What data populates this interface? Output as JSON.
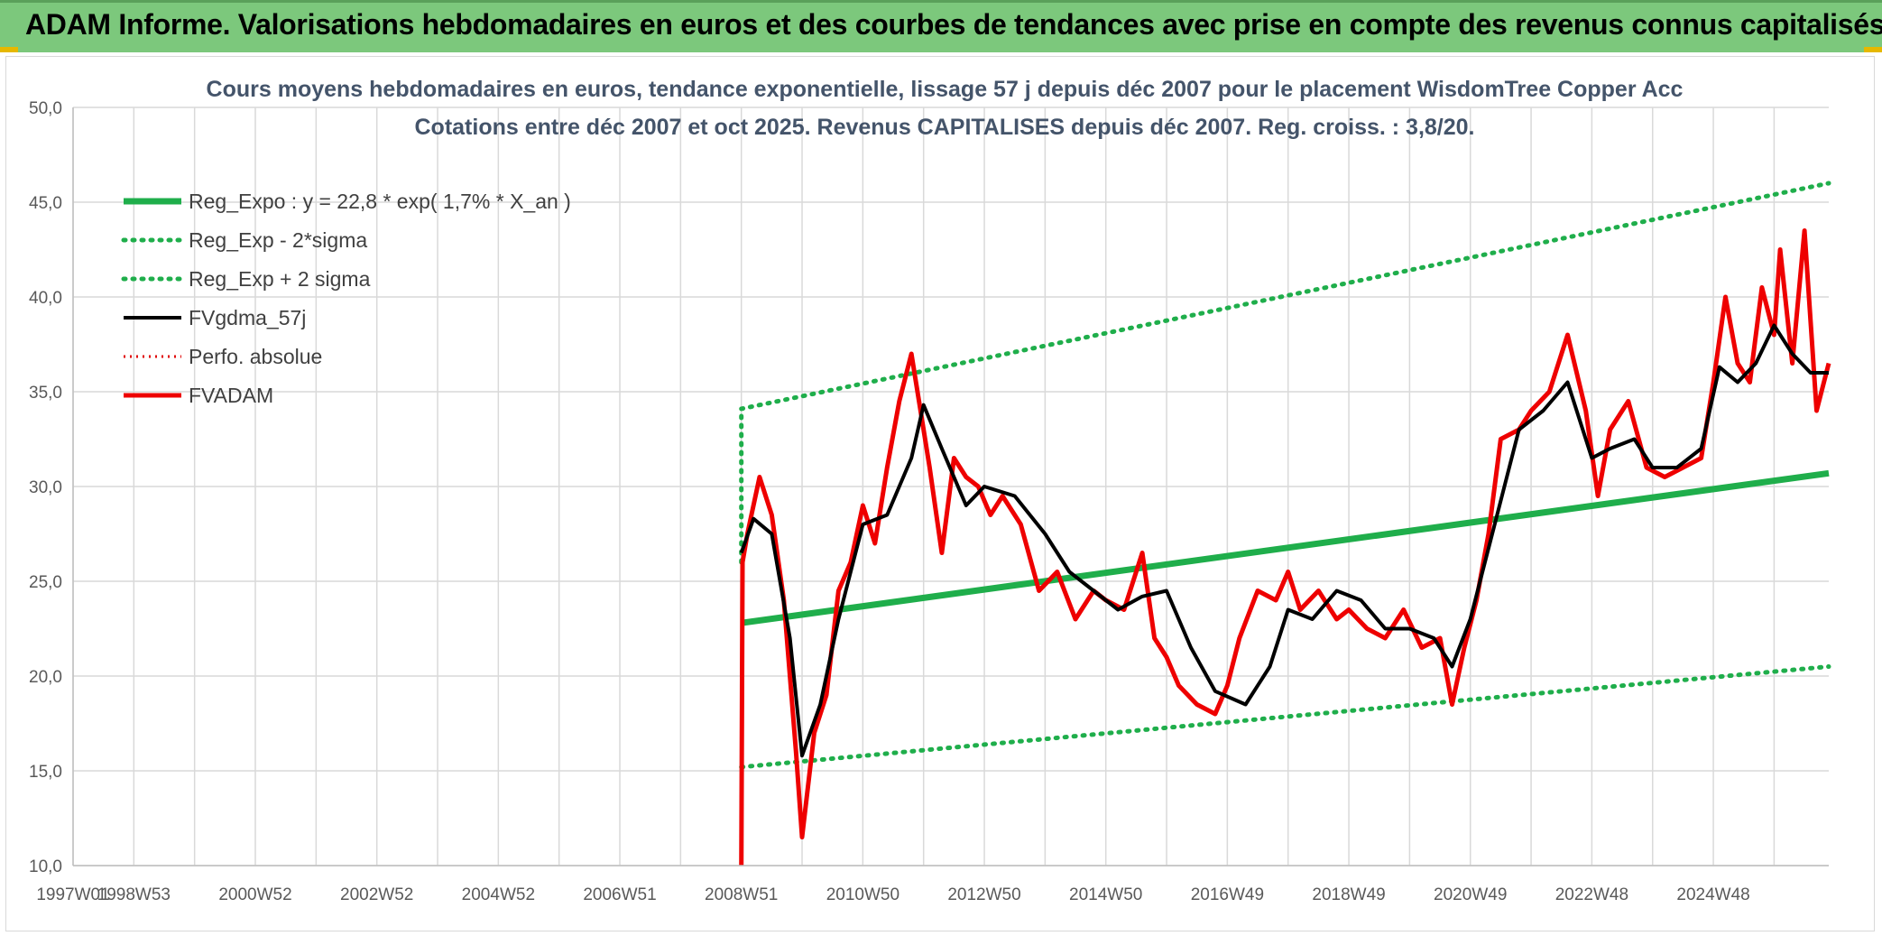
{
  "banner": {
    "title": "ADAM Informe. Valorisations hebdomadaires en euros et des courbes de tendances avec prise en compte des revenus connus capitalisés"
  },
  "colors": {
    "banner_bg": "#7cc87c",
    "reg_expo": "#1fae4b",
    "sigma_bands": "#1fae4b",
    "smoothed": "#000000",
    "perfo": "#e00000",
    "fvadam": "#ee0000",
    "grid": "#d9d9d9",
    "title_text": "#44546a"
  },
  "chart_data": {
    "type": "line",
    "title": "Cours moyens hebdomadaires en euros, tendance exponentielle, lissage 57 j depuis déc 2007 pour le placement WisdomTree Copper Acc",
    "subtitle": "Cotations entre déc 2007 et oct 2025. Revenus CAPITALISES depuis déc 2007. Reg. croiss. : 3,8/20.",
    "xlabel": "",
    "ylabel": "",
    "xlim": [
      1997.0,
      2025.9
    ],
    "ylim": [
      10,
      50
    ],
    "y_ticks": [
      "10,0",
      "15,0",
      "20,0",
      "25,0",
      "30,0",
      "35,0",
      "40,0",
      "45,0",
      "50,0"
    ],
    "x_tick_labels": [
      "1997W01",
      "1998W53",
      "2000W52",
      "2002W52",
      "2004W52",
      "2006W51",
      "2008W51",
      "2010W50",
      "2012W50",
      "2014W50",
      "2016W49",
      "2018W49",
      "2020W49",
      "2022W48",
      "2024W48"
    ],
    "x_tick_positions": [
      1997.0,
      1998.0,
      2000.0,
      2002.0,
      2004.0,
      2006.0,
      2008.0,
      2010.0,
      2012.0,
      2014.0,
      2016.0,
      2018.0,
      2020.0,
      2022.0,
      2024.0
    ],
    "grid": true,
    "legend_position": "top-left",
    "series": [
      {
        "name": "Reg_Expo : y = 22,8 * exp( 1,7% *  X_an )",
        "style": "solid-thick",
        "x": [
          2008.0,
          2025.9
        ],
        "y": [
          22.8,
          30.7
        ]
      },
      {
        "name": "Reg_Exp - 2*sigma",
        "style": "dotted",
        "x": [
          2008.0,
          2025.9
        ],
        "y": [
          15.2,
          20.5
        ]
      },
      {
        "name": "Reg_Exp + 2 sigma",
        "style": "dotted",
        "x": [
          2008.0,
          2008.0,
          2025.9
        ],
        "y": [
          26.0,
          34.1,
          46.0
        ]
      },
      {
        "name": "FVgdma_57j",
        "style": "solid",
        "x": [
          2008.0,
          2008.2,
          2008.5,
          2008.8,
          2009.0,
          2009.3,
          2009.6,
          2010.0,
          2010.4,
          2010.8,
          2011.0,
          2011.3,
          2011.7,
          2012.0,
          2012.5,
          2013.0,
          2013.4,
          2013.8,
          2014.2,
          2014.6,
          2015.0,
          2015.4,
          2015.8,
          2016.3,
          2016.7,
          2017.0,
          2017.4,
          2017.8,
          2018.2,
          2018.6,
          2019.0,
          2019.4,
          2019.7,
          2020.0,
          2020.4,
          2020.8,
          2021.2,
          2021.6,
          2022.0,
          2022.3,
          2022.7,
          2023.0,
          2023.4,
          2023.8,
          2024.1,
          2024.4,
          2024.7,
          2025.0,
          2025.3,
          2025.6,
          2025.9
        ],
        "y": [
          26.5,
          28.3,
          27.5,
          22.0,
          15.8,
          18.5,
          23.0,
          28.0,
          28.5,
          31.5,
          34.3,
          32.0,
          29.0,
          30.0,
          29.5,
          27.5,
          25.5,
          24.5,
          23.5,
          24.2,
          24.5,
          21.5,
          19.2,
          18.5,
          20.5,
          23.5,
          23.0,
          24.5,
          24.0,
          22.5,
          22.5,
          22.0,
          20.5,
          23.0,
          28.0,
          33.0,
          34.0,
          35.5,
          31.5,
          32.0,
          32.5,
          31.0,
          31.0,
          32.0,
          36.3,
          35.5,
          36.5,
          38.5,
          37.0,
          36.0,
          36.0
        ]
      },
      {
        "name": "Perfo. absolue",
        "style": "dotted",
        "x": [],
        "y": []
      },
      {
        "name": "FVADAM",
        "style": "solid-thick",
        "x": [
          2008.0,
          2008.02,
          2008.1,
          2008.3,
          2008.5,
          2008.7,
          2008.9,
          2009.0,
          2009.2,
          2009.4,
          2009.6,
          2009.8,
          2010.0,
          2010.2,
          2010.4,
          2010.6,
          2010.8,
          2011.0,
          2011.1,
          2011.3,
          2011.5,
          2011.7,
          2011.9,
          2012.1,
          2012.3,
          2012.6,
          2012.9,
          2013.2,
          2013.5,
          2013.8,
          2014.0,
          2014.3,
          2014.6,
          2014.8,
          2015.0,
          2015.2,
          2015.5,
          2015.8,
          2016.0,
          2016.2,
          2016.5,
          2016.8,
          2017.0,
          2017.2,
          2017.5,
          2017.8,
          2018.0,
          2018.3,
          2018.6,
          2018.9,
          2019.2,
          2019.5,
          2019.7,
          2019.9,
          2020.1,
          2020.3,
          2020.5,
          2020.8,
          2021.0,
          2021.3,
          2021.6,
          2021.9,
          2022.1,
          2022.3,
          2022.6,
          2022.9,
          2023.2,
          2023.5,
          2023.8,
          2024.0,
          2024.2,
          2024.4,
          2024.6,
          2024.8,
          2025.0,
          2025.1,
          2025.3,
          2025.5,
          2025.7,
          2025.9
        ],
        "y": [
          10.0,
          26.0,
          27.5,
          30.5,
          28.5,
          24.0,
          16.0,
          11.5,
          17.0,
          19.0,
          24.5,
          26.0,
          29.0,
          27.0,
          31.0,
          34.5,
          37.0,
          33.0,
          31.0,
          26.5,
          31.5,
          30.5,
          30.0,
          28.5,
          29.5,
          28.0,
          24.5,
          25.5,
          23.0,
          24.5,
          24.0,
          23.5,
          26.5,
          22.0,
          21.0,
          19.5,
          18.5,
          18.0,
          19.5,
          22.0,
          24.5,
          24.0,
          25.5,
          23.5,
          24.5,
          23.0,
          23.5,
          22.5,
          22.0,
          23.5,
          21.5,
          22.0,
          18.5,
          21.5,
          24.0,
          27.5,
          32.5,
          33.0,
          34.0,
          35.0,
          38.0,
          34.0,
          29.5,
          33.0,
          34.5,
          31.0,
          30.5,
          31.0,
          31.5,
          35.5,
          40.0,
          36.5,
          35.5,
          40.5,
          38.0,
          42.5,
          36.5,
          43.5,
          34.0,
          36.5
        ]
      }
    ]
  }
}
